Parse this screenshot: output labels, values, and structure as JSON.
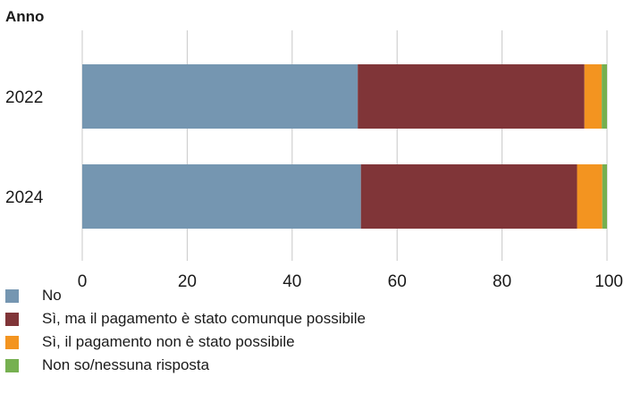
{
  "chart_data": {
    "type": "bar",
    "orientation": "horizontal",
    "stacked": true,
    "title": "Anno",
    "categories": [
      "2022",
      "2024"
    ],
    "series": [
      {
        "name": "No",
        "color": "#7596b1",
        "values": [
          52.5,
          53.1
        ]
      },
      {
        "name": "Sì, ma il pagamento è stato comunque possibile",
        "color": "#803538",
        "values": [
          43.2,
          41.2
        ]
      },
      {
        "name": "Sì, il pagamento non è stato possibile",
        "color": "#f39420",
        "values": [
          3.3,
          4.8
        ]
      },
      {
        "name": "Non so/nessuna risposta",
        "color": "#76b050",
        "values": [
          1.0,
          0.9
        ]
      }
    ],
    "xlim": [
      0,
      100
    ],
    "xticks": [
      0,
      20,
      40,
      60,
      80,
      100
    ],
    "grid": true,
    "legend_position": "bottom"
  }
}
